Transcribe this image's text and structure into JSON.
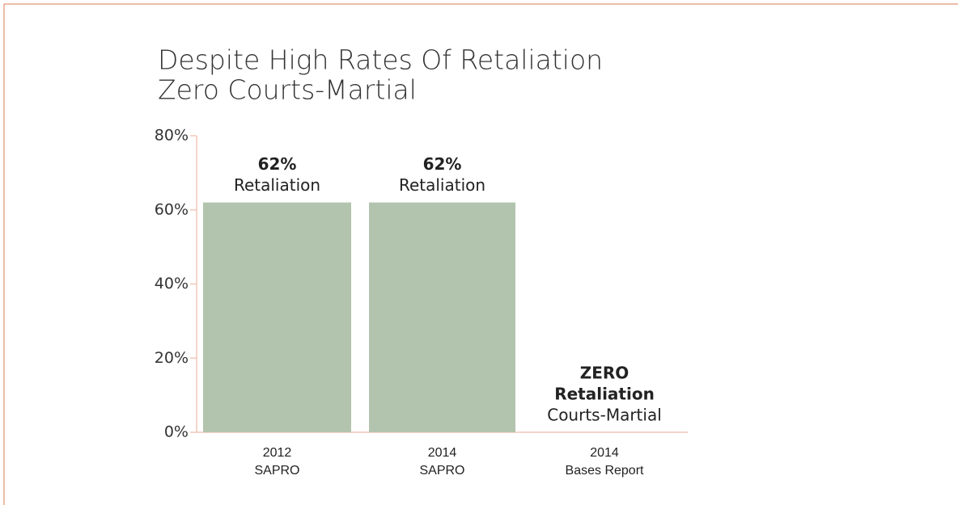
{
  "chart_data": {
    "type": "bar",
    "title": [
      "Despite High Rates Of Retaliation",
      "Zero Courts-Martial"
    ],
    "categories": [
      [
        "2012",
        "SAPRO"
      ],
      [
        "2014",
        "SAPRO"
      ],
      [
        "2014",
        "Bases Report"
      ]
    ],
    "values": [
      62,
      62,
      0
    ],
    "value_labels": [
      "62%",
      "62%",
      "ZERO"
    ],
    "bar_annotations": [
      [
        "Retaliation"
      ],
      [
        "Retaliation"
      ],
      [
        "Retaliation",
        "Courts-Martial"
      ]
    ],
    "color": "#b2c4ae",
    "ylim": [
      0,
      80
    ],
    "yticks": [
      {
        "value": 0,
        "label": "0%"
      },
      {
        "value": 20,
        "label": "20%"
      },
      {
        "value": 40,
        "label": "40%"
      },
      {
        "value": 60,
        "label": "60%"
      },
      {
        "value": 80,
        "label": "80%"
      }
    ],
    "grid": false
  }
}
